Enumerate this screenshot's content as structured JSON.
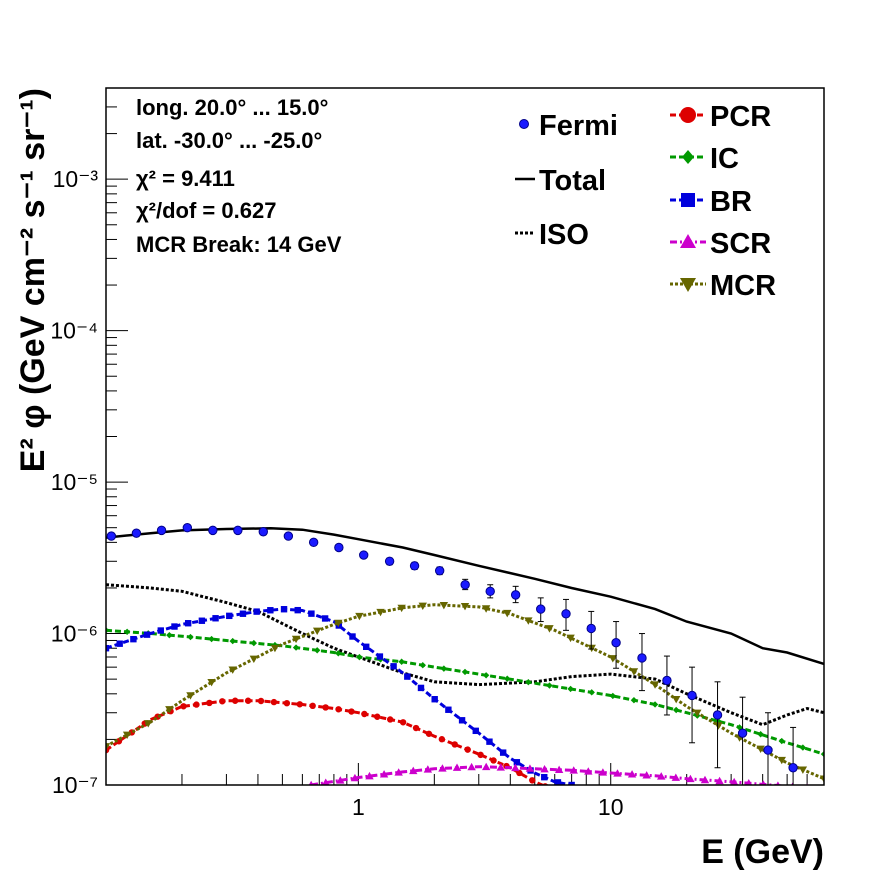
{
  "chart_data": {
    "type": "line",
    "xlabel": "E (GeV)",
    "ylabel": "E² φ (GeV cm⁻² s⁻¹ sr⁻¹)",
    "x_scale": "log",
    "y_scale": "log",
    "xlim": [
      0.1,
      70
    ],
    "ylim": [
      1e-07,
      0.004
    ],
    "x_tick_labels": [
      "1",
      "10"
    ],
    "y_tick_labels": [
      "10⁻⁷",
      "10⁻⁶",
      "10⁻⁵",
      "10⁻⁴",
      "10⁻³"
    ],
    "annotations": [
      "long. 20.0° ... 15.0°",
      "lat. -30.0° ... -25.0°",
      "χ² = 9.411",
      "χ²/dof = 0.627",
      "MCR Break: 14 GeV"
    ],
    "legend_placement": "top-right",
    "legend": [
      "Fermi",
      "Total",
      "ISO",
      "PCR",
      "IC",
      "BR",
      "SCR",
      "MCR"
    ],
    "fermi": {
      "name": "Fermi",
      "color": "#1a1aff",
      "x": [
        0.105,
        0.132,
        0.166,
        0.21,
        0.265,
        0.333,
        0.42,
        0.528,
        0.665,
        0.837,
        1.05,
        1.33,
        1.67,
        2.1,
        2.65,
        3.33,
        4.2,
        5.28,
        6.65,
        8.37,
        10.5,
        13.3,
        16.7,
        21.0,
        26.5,
        33.3,
        42.0,
        52.8
      ],
      "y": [
        4.4e-06,
        4.6e-06,
        4.8e-06,
        5e-06,
        4.8e-06,
        4.8e-06,
        4.7e-06,
        4.4e-06,
        4e-06,
        3.7e-06,
        3.3e-06,
        3e-06,
        2.8e-06,
        2.6e-06,
        2.1e-06,
        1.9e-06,
        1.8e-06,
        1.45e-06,
        1.35e-06,
        1.08e-06,
        8.7e-07,
        6.9e-07,
        4.9e-07,
        3.9e-07,
        2.9e-07,
        2.2e-07,
        1.7e-07,
        1.3e-07
      ],
      "err_low": [
        4.25e-06,
        4.45e-06,
        4.65e-06,
        4.85e-06,
        4.65e-06,
        4.65e-06,
        4.55e-06,
        4.25e-06,
        3.85e-06,
        3.55e-06,
        3.15e-06,
        2.85e-06,
        2.65e-06,
        2.45e-06,
        1.95e-06,
        1.72e-06,
        1.6e-06,
        1.2e-06,
        1.05e-06,
        7.9e-07,
        5.9e-07,
        4.2e-07,
        2.9e-07,
        1.9e-07,
        1.3e-07,
        8.5e-08,
        6e-08,
        4e-08
      ],
      "err_high": [
        4.55e-06,
        4.75e-06,
        4.95e-06,
        5.15e-06,
        4.95e-06,
        4.95e-06,
        4.85e-06,
        4.55e-06,
        4.15e-06,
        3.85e-06,
        3.45e-06,
        3.15e-06,
        2.95e-06,
        2.75e-06,
        2.28e-06,
        2.1e-06,
        2.05e-06,
        1.72e-06,
        1.68e-06,
        1.4e-06,
        1.2e-06,
        1e-06,
        7.1e-07,
        6e-07,
        4.8e-07,
        3.8e-07,
        3e-07,
        2.4e-07
      ]
    },
    "series": [
      {
        "name": "Total",
        "color": "#000000",
        "style": "solid",
        "marker": "none",
        "x": [
          0.1,
          0.15,
          0.2,
          0.3,
          0.45,
          0.6,
          0.8,
          1.0,
          1.5,
          2.0,
          3.0,
          5.0,
          7.0,
          10.0,
          15.0,
          20.0,
          30.0,
          40.0,
          50.0,
          70.0
        ],
        "y": [
          4.3e-06,
          4.6e-06,
          4.8e-06,
          4.9e-06,
          4.95e-06,
          4.85e-06,
          4.5e-06,
          4.2e-06,
          3.7e-06,
          3.3e-06,
          2.8e-06,
          2.3e-06,
          2e-06,
          1.75e-06,
          1.45e-06,
          1.2e-06,
          1e-06,
          8e-07,
          7.5e-07,
          6.3e-07
        ]
      },
      {
        "name": "ISO",
        "color": "#000000",
        "style": "dotted",
        "marker": "none",
        "x": [
          0.1,
          0.15,
          0.2,
          0.3,
          0.4,
          0.6,
          0.8,
          1.0,
          1.5,
          2.0,
          3.0,
          5.0,
          7.0,
          10.0,
          15.0,
          20.0,
          30.0,
          40.0,
          50.0,
          60.0,
          70.0
        ],
        "y": [
          2.1e-06,
          2e-06,
          1.9e-06,
          1.6e-06,
          1.4e-06,
          1e-06,
          8e-07,
          7e-07,
          5.5e-07,
          4.8e-07,
          4.6e-07,
          4.8e-07,
          5.2e-07,
          5.4e-07,
          5e-07,
          4e-07,
          3e-07,
          2.5e-07,
          2.9e-07,
          3.2e-07,
          3e-07
        ]
      },
      {
        "name": "PCR",
        "color": "#dd0000",
        "style": "dashed",
        "marker": "circle",
        "x": [
          0.1,
          0.15,
          0.2,
          0.3,
          0.4,
          0.6,
          0.8,
          1.0,
          1.5,
          2.0,
          3.0,
          4.0,
          5.0,
          5.5
        ],
        "y": [
          1.7e-07,
          2.7e-07,
          3.3e-07,
          3.6e-07,
          3.6e-07,
          3.4e-07,
          3.2e-07,
          3e-07,
          2.6e-07,
          2.1e-07,
          1.6e-07,
          1.3e-07,
          1.05e-07,
          9.8e-08
        ]
      },
      {
        "name": "IC",
        "color": "#009900",
        "style": "dashed",
        "marker": "diamond",
        "x": [
          0.1,
          0.15,
          0.2,
          0.3,
          0.5,
          0.8,
          1.0,
          1.5,
          2.0,
          3.0,
          5.0,
          7.0,
          10.0,
          15.0,
          20.0,
          30.0,
          50.0,
          70.0
        ],
        "y": [
          1.05e-06,
          1e-06,
          9.6e-07,
          9e-07,
          8.3e-07,
          7.5e-07,
          7e-07,
          6.5e-07,
          6e-07,
          5.4e-07,
          4.7e-07,
          4.3e-07,
          3.9e-07,
          3.4e-07,
          3e-07,
          2.5e-07,
          1.9e-07,
          1.6e-07
        ]
      },
      {
        "name": "BR",
        "color": "#0000dd",
        "style": "dashed",
        "marker": "square",
        "x": [
          0.1,
          0.15,
          0.2,
          0.3,
          0.4,
          0.5,
          0.6,
          0.8,
          1.0,
          1.5,
          2.0,
          3.0,
          4.0,
          5.0,
          6.0,
          7.0
        ],
        "y": [
          8e-07,
          1e-06,
          1.15e-06,
          1.3e-06,
          1.4e-06,
          1.45e-06,
          1.42e-06,
          1.2e-06,
          8.9e-07,
          5.5e-07,
          3.7e-07,
          2.2e-07,
          1.5e-07,
          1.2e-07,
          1.05e-07,
          1e-07
        ]
      },
      {
        "name": "SCR",
        "color": "#cc00cc",
        "style": "dashdot",
        "marker": "triangle-up",
        "x": [
          0.65,
          1.0,
          1.5,
          2.0,
          3.0,
          4.0,
          5.0,
          7.0,
          10.0,
          15.0,
          20.0,
          30.0,
          50.0,
          60.0
        ],
        "y": [
          1e-07,
          1.12e-07,
          1.22e-07,
          1.28e-07,
          1.32e-07,
          1.3e-07,
          1.28e-07,
          1.25e-07,
          1.2e-07,
          1.15e-07,
          1.1e-07,
          1.05e-07,
          9.8e-08,
          9.6e-08
        ]
      },
      {
        "name": "MCR",
        "color": "#666600",
        "style": "dotted",
        "marker": "triangle-down",
        "x": [
          0.1,
          0.15,
          0.2,
          0.3,
          0.5,
          0.8,
          1.0,
          1.5,
          2.0,
          3.0,
          4.0,
          6.0,
          10.0,
          15.0,
          20.0,
          30.0,
          50.0,
          70.0
        ],
        "y": [
          1.8e-07,
          2.6e-07,
          3.6e-07,
          5.5e-07,
          8.5e-07,
          1.15e-06,
          1.3e-06,
          1.48e-06,
          1.55e-06,
          1.5e-06,
          1.35e-06,
          1.05e-06,
          7e-07,
          4.6e-07,
          3.3e-07,
          2.2e-07,
          1.4e-07,
          1.1e-07
        ]
      }
    ]
  }
}
